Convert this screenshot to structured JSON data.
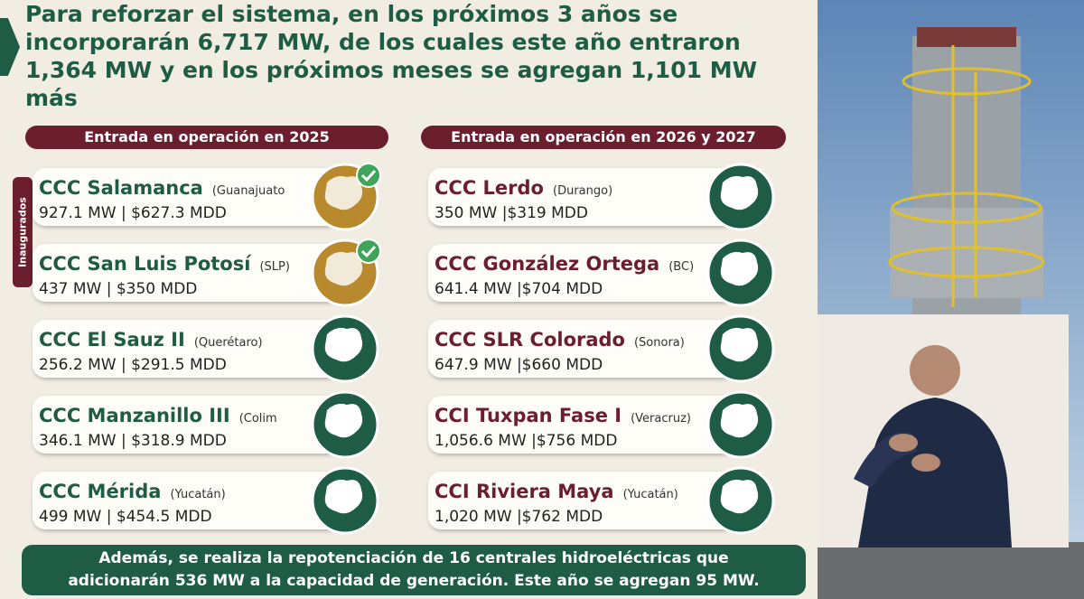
{
  "slide": {
    "heading_lines": [
      "Para reforzar el sistema, en los próximos 3 años se",
      "incorporarán 6,717 MW, de los cuales este año entraron",
      "1,364 MW y en los próximos meses se agregan 1,101 MW",
      "más"
    ],
    "side_label": "Inaugurados",
    "columns": [
      {
        "header": "Entrada en operación en 2025",
        "plants": [
          {
            "name": "CCC Salamanca",
            "state": "(Guanajuato",
            "details": "927.1 MW | $627.3 MDD",
            "inaugurated": true
          },
          {
            "name": "CCC San Luis Potosí",
            "state": "(SLP)",
            "details": "437 MW | $350 MDD",
            "inaugurated": true
          },
          {
            "name": "CCC El Sauz II",
            "state": "(Querétaro)",
            "details": "256.2 MW | $291.5 MDD",
            "inaugurated": false
          },
          {
            "name": "CCC Manzanillo III",
            "state": "(Colim",
            "details": "346.1 MW | $318.9 MDD",
            "inaugurated": false
          },
          {
            "name": "CCC Mérida",
            "state": "(Yucatán)",
            "details": "499 MW | $454.5 MDD",
            "inaugurated": false
          }
        ]
      },
      {
        "header": "Entrada en operación en 2026 y 2027",
        "plants": [
          {
            "name": "CCC Lerdo",
            "state": "(Durango)",
            "details": "350 MW |$319 MDD",
            "inaugurated": false
          },
          {
            "name": "CCC González Ortega",
            "state": "(BC)",
            "details": "641.4 MW |$704 MDD",
            "inaugurated": false
          },
          {
            "name": "CCC SLR Colorado",
            "state": "(Sonora)",
            "details": "647.9 MW |$660 MDD",
            "inaugurated": false
          },
          {
            "name": "CCI Tuxpan Fase I",
            "state": "(Veracruz)",
            "details": "1,056.6 MW |$756 MDD",
            "inaugurated": false
          },
          {
            "name": "CCI Riviera Maya",
            "state": "(Yucatán)",
            "details": "1,020 MW |$762 MDD",
            "inaugurated": false
          }
        ]
      }
    ],
    "footer_lines": [
      "Además, se realiza la repotenciación de 16 centrales hidroeléctricas que",
      "adicionarán 536 MW a la capacidad de generación. Este año se agregan 95 MW."
    ]
  }
}
